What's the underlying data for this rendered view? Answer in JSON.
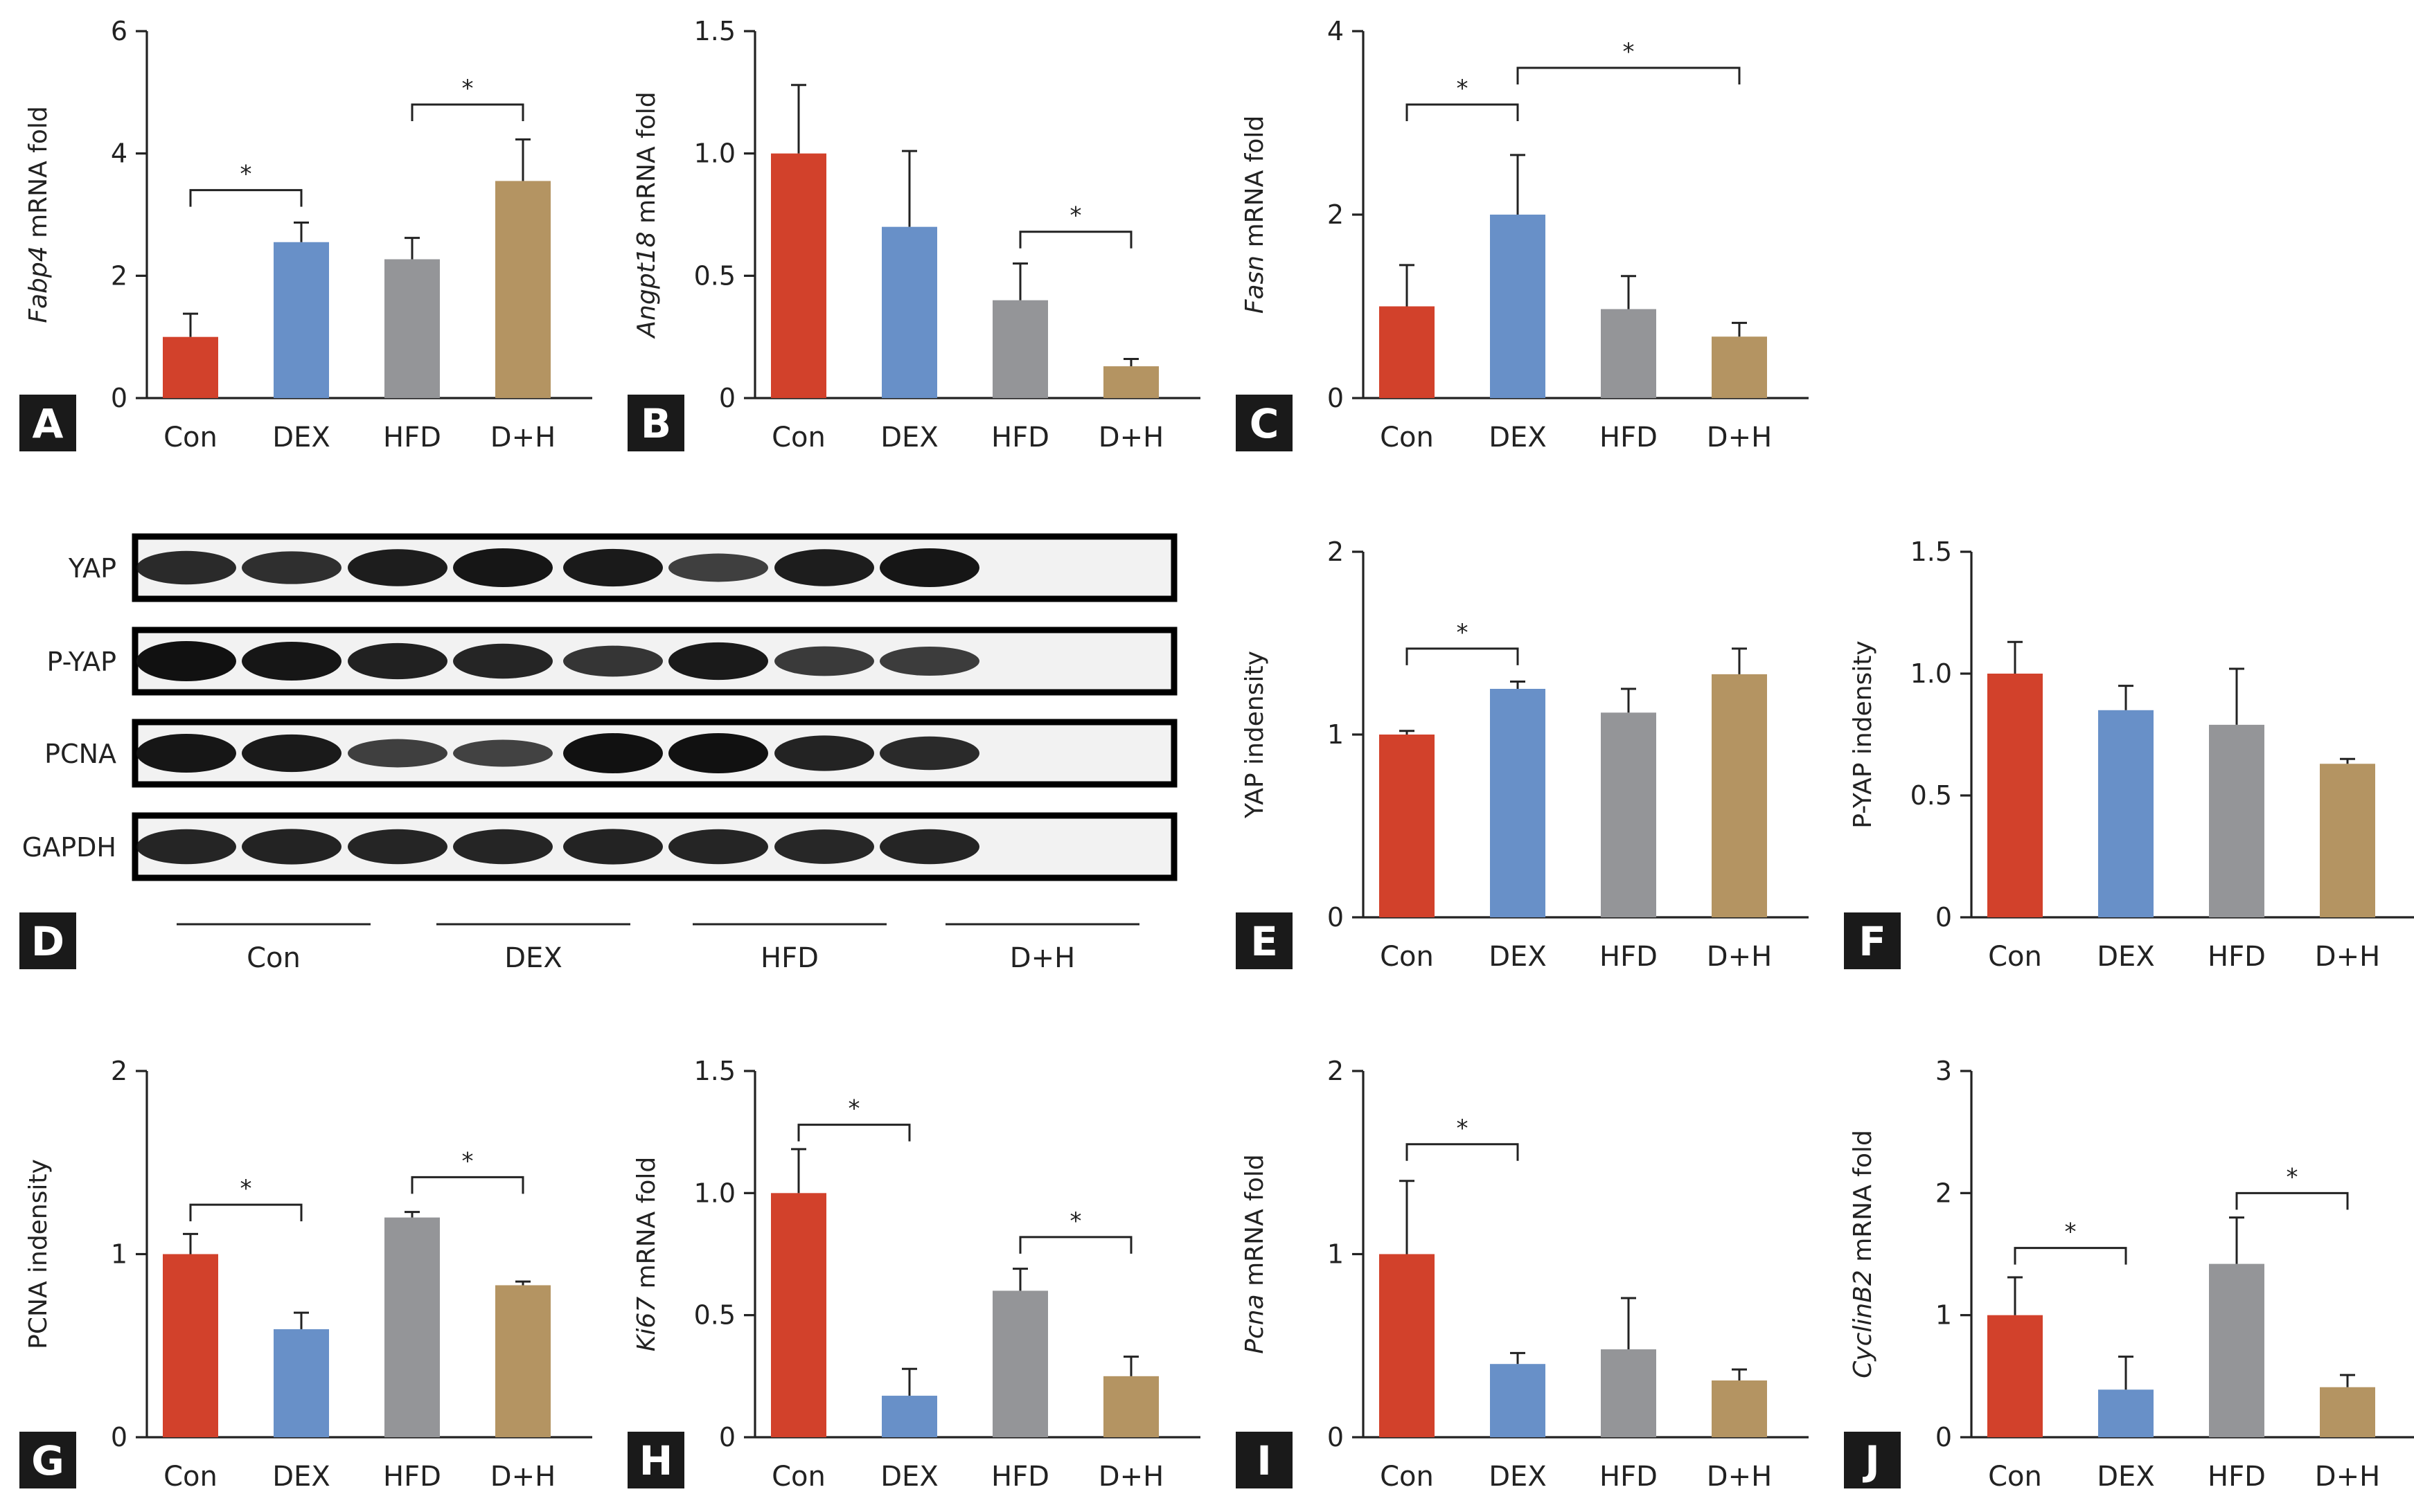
{
  "colors": {
    "Con": "#d2412b",
    "DEX": "#6890c8",
    "HFD": "#949598",
    "D+H": "#b49462"
  },
  "chart_data": [
    {
      "panel": "A",
      "type": "bar",
      "categories": [
        "Con",
        "DEX",
        "HFD",
        "D+H"
      ],
      "values": [
        1.0,
        2.55,
        2.27,
        3.55
      ],
      "errors": [
        0.38,
        0.32,
        0.35,
        0.68
      ],
      "ylabel_italic": "Fabp4",
      "ylabel_rest": " mRNA fold",
      "ylim": [
        0,
        6
      ],
      "yticks": [
        0,
        2,
        4,
        6
      ],
      "yticklabels": [
        "0",
        "2",
        "4",
        "6"
      ],
      "significance": [
        {
          "from": 0,
          "to": 1,
          "label": "*",
          "y": 3.4
        },
        {
          "from": 2,
          "to": 3,
          "label": "*",
          "y": 4.8
        }
      ]
    },
    {
      "panel": "B",
      "type": "bar",
      "categories": [
        "Con",
        "DEX",
        "HFD",
        "D+H"
      ],
      "values": [
        1.0,
        0.7,
        0.4,
        0.13
      ],
      "errors": [
        0.28,
        0.31,
        0.15,
        0.03
      ],
      "ylabel_italic": "Angpt18",
      "ylabel_rest": " mRNA fold",
      "ylim": [
        0,
        1.5
      ],
      "yticks": [
        0,
        0.5,
        1.0,
        1.5
      ],
      "yticklabels": [
        "0",
        "0.5",
        "1.0",
        "1.5"
      ],
      "significance": [
        {
          "from": 2,
          "to": 3,
          "label": "*",
          "y": 0.68
        }
      ]
    },
    {
      "panel": "C",
      "type": "bar",
      "categories": [
        "Con",
        "DEX",
        "HFD",
        "D+H"
      ],
      "values": [
        1.0,
        2.0,
        0.97,
        0.67
      ],
      "errors": [
        0.45,
        0.65,
        0.36,
        0.15
      ],
      "ylabel_italic": "Fasn",
      "ylabel_rest": " mRNA fold",
      "ylim": [
        0,
        4
      ],
      "yticks": [
        0,
        2,
        4
      ],
      "yticklabels": [
        "0",
        "2",
        "4"
      ],
      "significance": [
        {
          "from": 0,
          "to": 1,
          "label": "*",
          "y": 3.2
        },
        {
          "from": 1,
          "to": 3,
          "label": "*",
          "y": 3.6
        }
      ]
    },
    {
      "panel": "E",
      "type": "bar",
      "categories": [
        "Con",
        "DEX",
        "HFD",
        "D+H"
      ],
      "values": [
        1.0,
        1.25,
        1.12,
        1.33
      ],
      "errors": [
        0.02,
        0.04,
        0.13,
        0.14
      ],
      "ylabel_italic": "",
      "ylabel_rest": "YAP indensity",
      "ylim": [
        0,
        2
      ],
      "yticks": [
        0,
        1,
        2
      ],
      "yticklabels": [
        "0",
        "1",
        "2"
      ],
      "significance": [
        {
          "from": 0,
          "to": 1,
          "label": "*",
          "y": 1.47
        }
      ]
    },
    {
      "panel": "F",
      "type": "bar",
      "categories": [
        "Con",
        "DEX",
        "HFD",
        "D+H"
      ],
      "values": [
        1.0,
        0.85,
        0.79,
        0.63
      ],
      "errors": [
        0.13,
        0.1,
        0.23,
        0.02
      ],
      "ylabel_italic": "",
      "ylabel_rest": "P-YAP indensity",
      "ylim": [
        0,
        1.5
      ],
      "yticks": [
        0,
        0.5,
        1.0,
        1.5
      ],
      "yticklabels": [
        "0",
        "0.5",
        "1.0",
        "1.5"
      ],
      "significance": []
    },
    {
      "panel": "G",
      "type": "bar",
      "categories": [
        "Con",
        "DEX",
        "HFD",
        "D+H"
      ],
      "values": [
        1.0,
        0.59,
        1.2,
        0.83
      ],
      "errors": [
        0.11,
        0.09,
        0.03,
        0.02
      ],
      "ylabel_italic": "",
      "ylabel_rest": "PCNA indensity",
      "ylim": [
        0,
        2
      ],
      "yticks": [
        0,
        1,
        2
      ],
      "yticklabels": [
        "0",
        "1",
        "2"
      ],
      "significance": [
        {
          "from": 0,
          "to": 1,
          "label": "*",
          "y": 1.27
        },
        {
          "from": 2,
          "to": 3,
          "label": "*",
          "y": 1.42
        }
      ]
    },
    {
      "panel": "H",
      "type": "bar",
      "categories": [
        "Con",
        "DEX",
        "HFD",
        "D+H"
      ],
      "values": [
        1.0,
        0.17,
        0.6,
        0.25
      ],
      "errors": [
        0.18,
        0.11,
        0.09,
        0.08
      ],
      "ylabel_italic": "Ki67",
      "ylabel_rest": " mRNA fold",
      "ylim": [
        0,
        1.5
      ],
      "yticks": [
        0,
        0.5,
        1.0,
        1.5
      ],
      "yticklabels": [
        "0",
        "0.5",
        "1.0",
        "1.5"
      ],
      "significance": [
        {
          "from": 0,
          "to": 1,
          "label": "*",
          "y": 1.28
        },
        {
          "from": 2,
          "to": 3,
          "label": "*",
          "y": 0.82
        }
      ]
    },
    {
      "panel": "I",
      "type": "bar",
      "categories": [
        "Con",
        "DEX",
        "HFD",
        "D+H"
      ],
      "values": [
        1.0,
        0.4,
        0.48,
        0.31
      ],
      "errors": [
        0.4,
        0.06,
        0.28,
        0.06
      ],
      "ylabel_italic": "Pcna",
      "ylabel_rest": " mRNA fold",
      "ylim": [
        0,
        2
      ],
      "yticks": [
        0,
        1,
        2
      ],
      "yticklabels": [
        "0",
        "1",
        "2"
      ],
      "significance": [
        {
          "from": 0,
          "to": 1,
          "label": "*",
          "y": 1.6
        }
      ]
    },
    {
      "panel": "J",
      "type": "bar",
      "categories": [
        "Con",
        "DEX",
        "HFD",
        "D+H"
      ],
      "values": [
        1.0,
        0.39,
        1.42,
        0.41
      ],
      "errors": [
        0.31,
        0.27,
        0.38,
        0.1
      ],
      "ylabel_italic": "CyclinB2",
      "ylabel_rest": " mRNA fold",
      "ylim": [
        0,
        3
      ],
      "yticks": [
        0,
        1,
        2,
        3
      ],
      "yticklabels": [
        "0",
        "1",
        "2",
        "3"
      ],
      "significance": [
        {
          "from": 0,
          "to": 1,
          "label": "*",
          "y": 1.55
        },
        {
          "from": 2,
          "to": 3,
          "label": "*",
          "y": 2.0
        }
      ]
    }
  ],
  "blot": {
    "panel": "D",
    "rows": [
      {
        "label": "YAP",
        "intensity": [
          0.75,
          0.72,
          0.88,
          0.95,
          0.9,
          0.55,
          0.88,
          0.95
        ]
      },
      {
        "label": "P-YAP",
        "intensity": [
          1.0,
          0.95,
          0.85,
          0.8,
          0.65,
          0.9,
          0.6,
          0.58
        ]
      },
      {
        "label": "PCNA",
        "intensity": [
          0.95,
          0.9,
          0.55,
          0.5,
          1.0,
          1.0,
          0.82,
          0.75
        ]
      },
      {
        "label": "GAPDH",
        "intensity": [
          0.8,
          0.82,
          0.8,
          0.8,
          0.82,
          0.8,
          0.78,
          0.8
        ]
      }
    ],
    "groups": [
      "Con",
      "DEX",
      "HFD",
      "D+H"
    ]
  }
}
